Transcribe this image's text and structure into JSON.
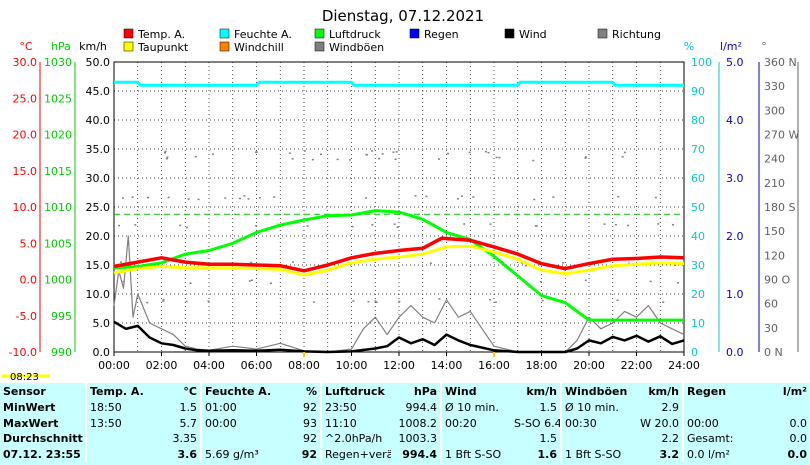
{
  "title": "Dienstag, 07.12.2021",
  "clock_time": "08:23",
  "legend": [
    {
      "label": "Temp. A.",
      "color": "#ff0000"
    },
    {
      "label": "Feuchte A.",
      "color": "#00ffff"
    },
    {
      "label": "Luftdruck",
      "color": "#00ff00"
    },
    {
      "label": "Regen",
      "color": "#0000ff"
    },
    {
      "label": "Wind",
      "color": "#000000"
    },
    {
      "label": "Richtung",
      "color": "#808080"
    },
    {
      "label": "Taupunkt",
      "color": "#ffff00"
    },
    {
      "label": "Windchill",
      "color": "#ff8000"
    },
    {
      "label": "Windböen",
      "color": "#808080"
    }
  ],
  "axes": {
    "temp": {
      "unit": "°C",
      "ticks": [
        "30.0",
        "25.0",
        "20.0",
        "15.0",
        "10.0",
        "5.0",
        "0.0",
        "-5.0",
        "-10.0"
      ],
      "color": "#ff0000"
    },
    "pressure": {
      "unit": "hPa",
      "ticks": [
        "1030",
        "1025",
        "1020",
        "1015",
        "1010",
        "1005",
        "1000",
        "995",
        "990"
      ],
      "color": "#00cc00"
    },
    "wind": {
      "unit": "km/h",
      "ticks": [
        "50.0",
        "45.0",
        "40.0",
        "35.0",
        "30.0",
        "25.0",
        "20.0",
        "15.0",
        "10.0",
        "5.0",
        "0.0"
      ],
      "color": "#000000"
    },
    "humidity": {
      "unit": "%",
      "ticks": [
        "100",
        "90",
        "80",
        "70",
        "60",
        "50",
        "40",
        "30",
        "20",
        "10",
        "0"
      ],
      "color": "#00cccc"
    },
    "rain": {
      "unit": "l/m²",
      "ticks": [
        "5.0",
        "4.0",
        "3.0",
        "2.0",
        "1.0",
        "0.0"
      ],
      "color": "#0000cc"
    },
    "direction": {
      "unit": "°",
      "ticks": [
        "360 N",
        "330",
        "300",
        "270 W",
        "240",
        "210",
        "180 S",
        "150",
        "120",
        "90 O",
        "60",
        "30",
        "0 N"
      ],
      "color": "#606060"
    },
    "time": {
      "ticks": [
        "00:00",
        "02:00",
        "04:00",
        "06:00",
        "08:00",
        "10:00",
        "12:00",
        "14:00",
        "16:00",
        "18:00",
        "20:00",
        "22:00",
        "24:00"
      ]
    }
  },
  "chart_data": {
    "type": "line",
    "x_unit": "hours",
    "xlim": [
      0,
      24
    ],
    "series": [
      {
        "name": "Temp. A.",
        "axis": "temp",
        "color": "#ff0000",
        "x": [
          0,
          1,
          2,
          3,
          4,
          5,
          6,
          7,
          8,
          9,
          10,
          11,
          12,
          13,
          13.8,
          15,
          16,
          17,
          18,
          19,
          20,
          21,
          22,
          23,
          24
        ],
        "y": [
          1.8,
          2.4,
          3.0,
          2.4,
          2.1,
          2.1,
          2.0,
          1.9,
          1.2,
          2.0,
          3.0,
          3.6,
          4.0,
          4.3,
          5.7,
          5.4,
          4.5,
          3.5,
          2.2,
          1.5,
          2.2,
          2.8,
          2.9,
          3.1,
          3.0
        ]
      },
      {
        "name": "Taupunkt",
        "axis": "temp",
        "color": "#ffff00",
        "x": [
          0,
          1,
          2,
          3,
          4,
          5,
          6,
          7,
          8,
          9,
          10,
          11,
          12,
          13,
          14,
          15,
          16,
          17,
          18,
          19,
          20,
          21,
          22,
          23,
          24
        ],
        "y": [
          0.9,
          1.5,
          1.8,
          1.6,
          1.6,
          1.6,
          1.5,
          1.4,
          0.6,
          1.3,
          2.3,
          2.8,
          3.1,
          3.5,
          4.5,
          4.6,
          3.8,
          2.8,
          1.3,
          0.8,
          1.3,
          1.9,
          2.1,
          2.3,
          2.2
        ]
      },
      {
        "name": "Feuchte A.",
        "axis": "humidity",
        "color": "#00ffff",
        "x": [
          0,
          1,
          1.1,
          6,
          6.1,
          10,
          10.1,
          17,
          17.1,
          21,
          21.1,
          24
        ],
        "y": [
          93,
          93,
          92,
          92,
          93,
          93,
          92,
          92,
          93,
          93,
          92,
          92
        ]
      },
      {
        "name": "Luftdruck",
        "axis": "pressure",
        "color": "#00ff00",
        "x": [
          0,
          1,
          2,
          3,
          4,
          5,
          6,
          7,
          8,
          9,
          10,
          11,
          12,
          13,
          14,
          15,
          16,
          17,
          18,
          19,
          20,
          21,
          22,
          23,
          24
        ],
        "y": [
          1001.6,
          1001.8,
          1002.3,
          1003.5,
          1004.0,
          1005.0,
          1006.5,
          1007.5,
          1008.2,
          1008.8,
          1008.9,
          1009.5,
          1009.3,
          1008.3,
          1006.5,
          1005.5,
          1003.2,
          1000.5,
          997.8,
          996.8,
          994.4,
          994.4,
          994.4,
          994.4,
          994.4
        ]
      },
      {
        "name": "Wind",
        "axis": "wind",
        "color": "#000000",
        "x": [
          0,
          0.5,
          1,
          1.5,
          2,
          2.5,
          3,
          3.5,
          4,
          5,
          6,
          7,
          8,
          9,
          10,
          11,
          11.5,
          12,
          12.5,
          13,
          13.5,
          14,
          14.5,
          15,
          16,
          17,
          18,
          19,
          19.5,
          20,
          20.5,
          21,
          21.5,
          22,
          22.5,
          23,
          23.5,
          24
        ],
        "y": [
          5.2,
          4.0,
          4.5,
          2.5,
          1.5,
          1.2,
          0.6,
          0.3,
          0.2,
          0.3,
          0.2,
          0.4,
          0.1,
          0.0,
          0.1,
          0.6,
          1.0,
          2.5,
          1.5,
          2.2,
          1.2,
          3.0,
          2.0,
          1.2,
          0.3,
          0.0,
          0.0,
          0.0,
          0.6,
          2.0,
          1.5,
          2.6,
          2.0,
          2.8,
          1.8,
          2.7,
          1.4,
          2.0
        ]
      },
      {
        "name": "Windböen",
        "axis": "wind",
        "color": "#808080",
        "x": [
          0,
          0.2,
          0.4,
          0.6,
          0.8,
          1,
          1.5,
          2,
          2.5,
          3,
          3.5,
          4,
          5,
          6,
          7,
          8,
          9,
          10,
          10.5,
          11,
          11.5,
          12,
          12.5,
          13,
          13.5,
          14,
          14.5,
          15,
          15.5,
          16,
          17,
          18,
          19,
          19.5,
          20,
          20.5,
          21,
          21.5,
          22,
          22.5,
          23,
          23.5,
          24
        ],
        "y": [
          8,
          14,
          11,
          20,
          6,
          10,
          5,
          4,
          3,
          1,
          0.5,
          0.3,
          1,
          0.5,
          1.5,
          0.2,
          0,
          0.5,
          4,
          6,
          3,
          6,
          8,
          6,
          5,
          9,
          6,
          7,
          4,
          1,
          0,
          0,
          0,
          2,
          6,
          4,
          5,
          7,
          6,
          8,
          5,
          4,
          3
        ]
      }
    ],
    "markers": [
      {
        "name": "Regen",
        "color": "#0000ff",
        "hours": [
          8.0,
          16.0
        ]
      },
      {
        "name": "Windchill",
        "color": "#ff8000",
        "hours": []
      }
    ],
    "reference_line": {
      "axis": "temp",
      "value": 9.0,
      "color": "#00cc00",
      "style": "dashed"
    }
  },
  "table": {
    "headers": [
      "Sensor",
      "Temp. A.",
      "°C",
      "Feuchte A.",
      "%",
      "Luftdruck",
      "hPa",
      "Wind",
      "km/h",
      "Windböen",
      "km/h",
      "Regen",
      "l/m²"
    ],
    "rows": [
      [
        "MinWert",
        "18:50",
        "1.5",
        "01:00",
        "92",
        "23:50",
        "994.4",
        "Ø 10 min.",
        "1.5",
        "Ø 10 min.",
        "2.9",
        "",
        ""
      ],
      [
        "MaxWert",
        "13:50",
        "5.7",
        "00:00",
        "93",
        "11:10",
        "1008.2",
        "00:20",
        "S-SO 6.4",
        "00:30",
        "W 20.0",
        "00:00",
        "0.0"
      ],
      [
        "Durchschnitt",
        "",
        "3.35",
        "",
        "92",
        "^2.0hPa/h",
        "1003.3",
        "",
        "1.5",
        "",
        "2.2",
        "Gesamt:",
        "0.0"
      ],
      [
        "07.12. 23:55",
        "",
        "3.6",
        "5.69 g/m³",
        "92",
        "Regen+verän",
        "994.4",
        "1 Bft S-SO",
        "1.6",
        "1 Bft S-SO",
        "3.2",
        "0.0 l/m²",
        "0.0"
      ]
    ]
  }
}
